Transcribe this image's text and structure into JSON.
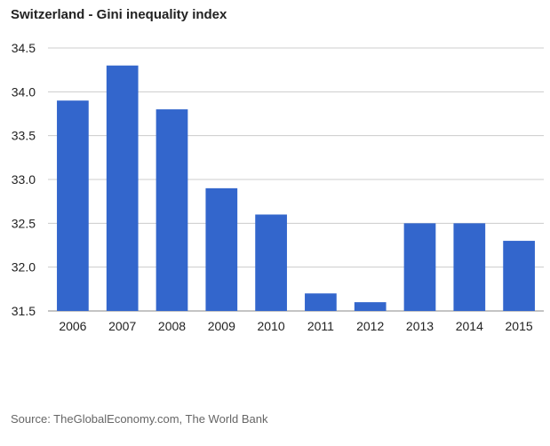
{
  "chart_data": {
    "type": "bar",
    "title": "Switzerland - Gini inequality index",
    "categories": [
      "2006",
      "2007",
      "2008",
      "2009",
      "2010",
      "2011",
      "2012",
      "2013",
      "2014",
      "2015"
    ],
    "series": [
      {
        "name": "Gini inequality index",
        "values": [
          33.9,
          34.3,
          33.8,
          32.9,
          32.6,
          31.7,
          31.6,
          32.5,
          32.5,
          32.3
        ]
      }
    ],
    "ylim": [
      31.5,
      34.5
    ],
    "yticks": [
      "31.5",
      "32.0",
      "32.5",
      "33.0",
      "33.5",
      "34.0",
      "34.5"
    ],
    "xlabel": "",
    "ylabel": "",
    "grid": true,
    "bar_color": "#3366cc",
    "grid_color": "#cccccc"
  },
  "footer": {
    "source": "Source: TheGlobalEconomy.com, The World Bank"
  }
}
